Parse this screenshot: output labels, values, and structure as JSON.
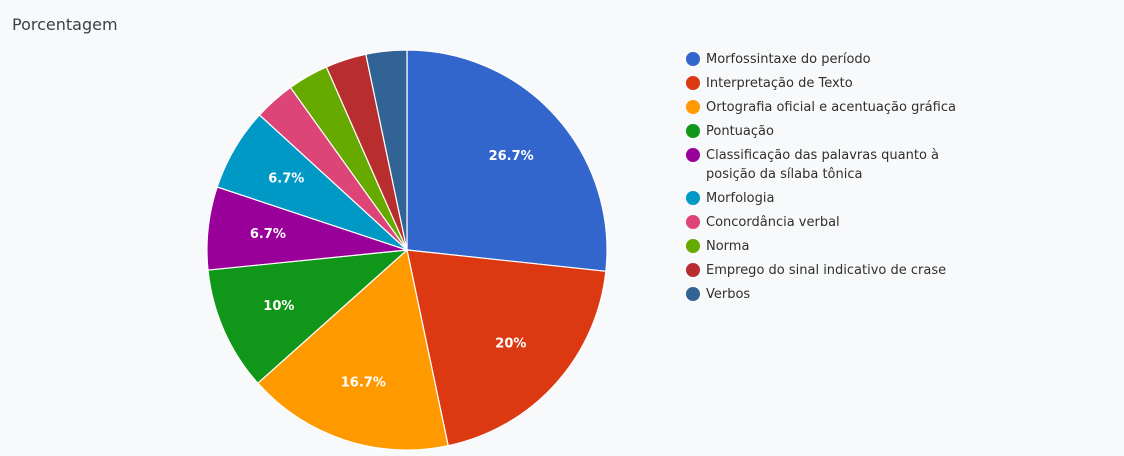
{
  "chart_title": "Porcentagem",
  "chart_data": {
    "type": "pie",
    "title": "Porcentagem",
    "legend_position": "right",
    "labels": [
      "Morfossintaxe do período",
      "Interpretação de Texto",
      "Ortografia oficial e acentuação gráfica",
      "Pontuação",
      "Classificação das palavras quanto à posição da sílaba tônica",
      "Morfologia",
      "Concordância verbal",
      "Norma",
      "Emprego do sinal indicativo de crase",
      "Verbos"
    ],
    "values": [
      26.7,
      20,
      16.7,
      10,
      6.7,
      6.7,
      3.3,
      3.3,
      3.3,
      3.3
    ],
    "data_labels": [
      "26.7%",
      "20%",
      "16.7%",
      "10%",
      "6.7%",
      "6.7%",
      "",
      "",
      "",
      ""
    ],
    "colors": [
      "#3366cc",
      "#dc3912",
      "#ff9900",
      "#109618",
      "#990099",
      "#0099c6",
      "#dd4477",
      "#66aa00",
      "#b82e2e",
      "#316395"
    ]
  }
}
